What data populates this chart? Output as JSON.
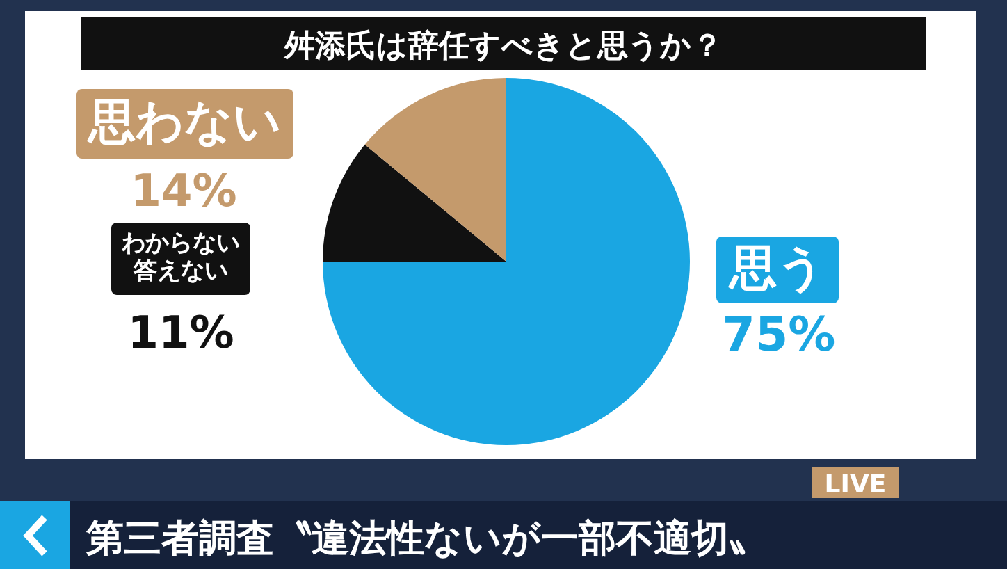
{
  "chart_data": {
    "type": "pie",
    "title": "舛添氏は辞任すべきと思うか？",
    "categories": [
      "思う",
      "わからない答えない",
      "思わない"
    ],
    "values": [
      75,
      11,
      14
    ],
    "colors": [
      "#1aa6e2",
      "#111111",
      "#c49a6c"
    ],
    "value_labels": [
      "75%",
      "11%",
      "14%"
    ],
    "legend": false,
    "annotations": [
      "LIVE",
      "第三者調査〝違法性ないが一部不適切〟"
    ]
  }
}
